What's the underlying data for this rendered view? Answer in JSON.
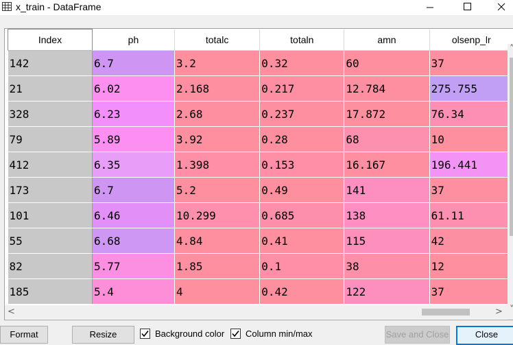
{
  "window": {
    "title": "x_train - DataFrame",
    "minimize_label": "—",
    "maximize_label": "☐",
    "close_label": "✕"
  },
  "table": {
    "columns": [
      "Index",
      "ph",
      "totalc",
      "totaln",
      "amn",
      "olsenp_lr"
    ],
    "rows": [
      {
        "values": [
          "142",
          "6.7",
          "3.2",
          "0.32",
          "60",
          "37"
        ],
        "colors": [
          "#c8c8c8",
          "#cf95f2",
          "#fd8f9f",
          "#fe8f9f",
          "#fe8f9f",
          "#fd8fa1"
        ]
      },
      {
        "values": [
          "21",
          "6.02",
          "2.168",
          "0.217",
          "12.784",
          "275.755"
        ],
        "colors": [
          "#c8c8c8",
          "#fd8ff1",
          "#fe8fa0",
          "#fe8fa3",
          "#fe8fa0",
          "#c09ff5"
        ]
      },
      {
        "values": [
          "328",
          "6.23",
          "2.68",
          "0.237",
          "17.872",
          "76.34"
        ],
        "colors": [
          "#c8c8c8",
          "#f28ffb",
          "#fe8fa0",
          "#fe8fa1",
          "#fe8f9f",
          "#fd8fb5"
        ]
      },
      {
        "values": [
          "79",
          "5.89",
          "3.92",
          "0.28",
          "68",
          "10"
        ],
        "colors": [
          "#c8c8c8",
          "#fd8ff3",
          "#fe8f9f",
          "#fe8f9f",
          "#fd8faf",
          "#fe8f9f"
        ]
      },
      {
        "values": [
          "412",
          "6.35",
          "1.398",
          "0.153",
          "16.167",
          "196.441"
        ],
        "colors": [
          "#c8c8c8",
          "#e89ef8",
          "#fe8fa6",
          "#fe8fa6",
          "#fe8fa1",
          "#f393f6"
        ]
      },
      {
        "values": [
          "173",
          "6.7",
          "5.2",
          "0.49",
          "141",
          "37"
        ],
        "colors": [
          "#c8c8c8",
          "#cf95f2",
          "#fe8f9f",
          "#fe8f9f",
          "#fd8fc0",
          "#fd8fa1"
        ]
      },
      {
        "values": [
          "101",
          "6.46",
          "10.299",
          "0.685",
          "138",
          "61.11"
        ],
        "colors": [
          "#c8c8c8",
          "#e28ff7",
          "#fe8fad",
          "#fe8faa",
          "#fd8fc3",
          "#fd8fb1"
        ]
      },
      {
        "values": [
          "55",
          "6.68",
          "4.84",
          "0.41",
          "115",
          "42"
        ],
        "colors": [
          "#c8c8c8",
          "#ce97f3",
          "#fe8f9f",
          "#fe8f9f",
          "#fd8fbc",
          "#fd8fa2"
        ]
      },
      {
        "values": [
          "82",
          "5.77",
          "1.85",
          "0.1",
          "38",
          "12"
        ],
        "colors": [
          "#c8c8c8",
          "#fd8fe3",
          "#fe8fa1",
          "#fe8fa6",
          "#fd8fa9",
          "#fe8f9f"
        ]
      },
      {
        "values": [
          "185",
          "5.4",
          "4",
          "0.42",
          "122",
          "37"
        ],
        "colors": [
          "#c8c8c8",
          "#fd8fd9",
          "#fe8f9f",
          "#fe8f9f",
          "#fd8fbd",
          "#fd8fa1"
        ]
      }
    ]
  },
  "scroll": {
    "up_arrow": "˄",
    "down_arrow": "˅",
    "left_arrow": "<",
    "right_arrow": ">"
  },
  "buttons": {
    "format": "Format",
    "resize": "Resize",
    "save_and_close": "Save and Close",
    "close": "Close"
  },
  "checkboxes": {
    "background_color": {
      "label": "Background color",
      "checked": true
    },
    "column_minmax": {
      "label": "Column min/max",
      "checked": true
    }
  }
}
